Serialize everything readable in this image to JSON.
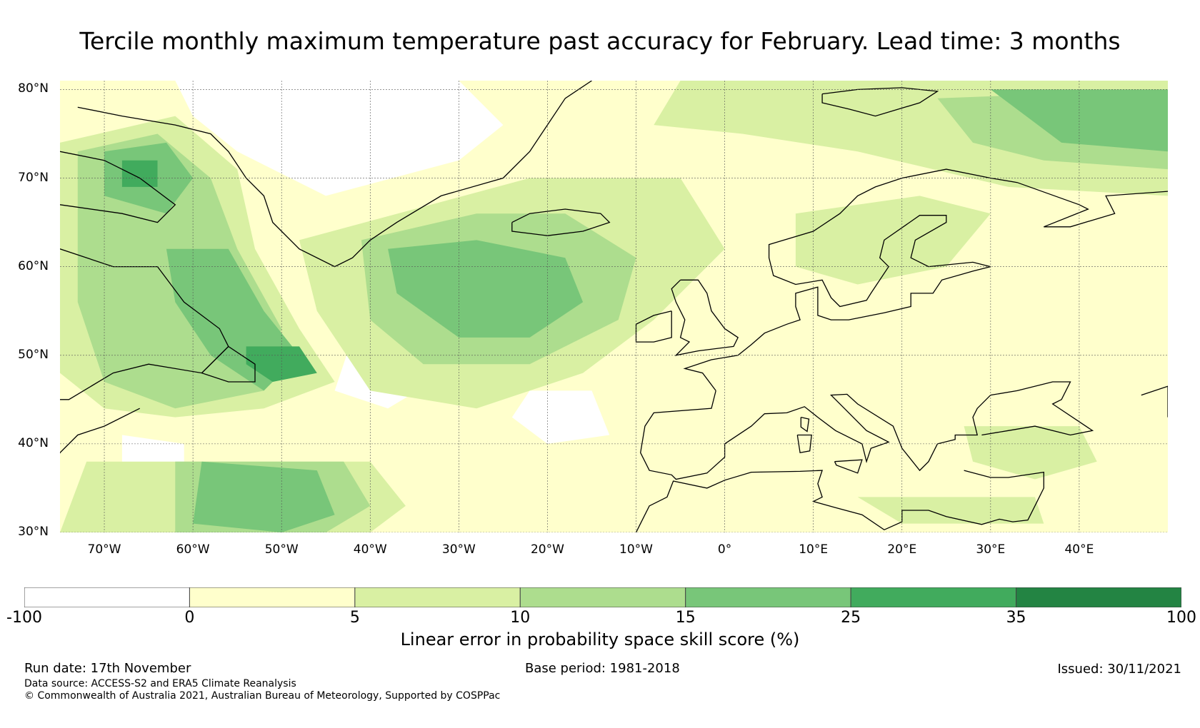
{
  "title": "Tercile monthly maximum temperature past accuracy for February. Lead time: 3 months",
  "map": {
    "region": "North Atlantic and Europe",
    "lat_range": [
      30,
      81
    ],
    "lon_range": [
      -75,
      50
    ],
    "lat_labels": [
      "80°N",
      "70°N",
      "60°N",
      "50°N",
      "40°N",
      "30°N"
    ],
    "lat_values": [
      80,
      70,
      60,
      50,
      40,
      30
    ],
    "lon_labels": [
      "70°W",
      "60°W",
      "50°W",
      "40°W",
      "30°W",
      "20°W",
      "10°W",
      "0°",
      "10°E",
      "20°E",
      "30°E",
      "40°E"
    ],
    "lon_values": [
      -70,
      -60,
      -50,
      -40,
      -30,
      -20,
      -10,
      0,
      10,
      20,
      30,
      40
    ]
  },
  "colorbar": {
    "ticks": [
      "-100",
      "0",
      "5",
      "10",
      "15",
      "25",
      "35",
      "100"
    ],
    "colors": [
      "#ffffff",
      "#ffffcc",
      "#d9f0a3",
      "#addd8e",
      "#78c679",
      "#41ab5d",
      "#238443"
    ],
    "label": "Linear error in probability space skill score (%)"
  },
  "footer": {
    "run_date": "Run date: 17th November",
    "base_period": "Base period: 1981-2018",
    "issued": "Issued: 30/11/2021",
    "data_source": "Data source: ACCESS-S2 and ERA5 Climate Reanalysis",
    "copyright": "© Commonwealth of Australia 2021, Australian Bureau of Meteorology, Supported by COSPPac"
  }
}
